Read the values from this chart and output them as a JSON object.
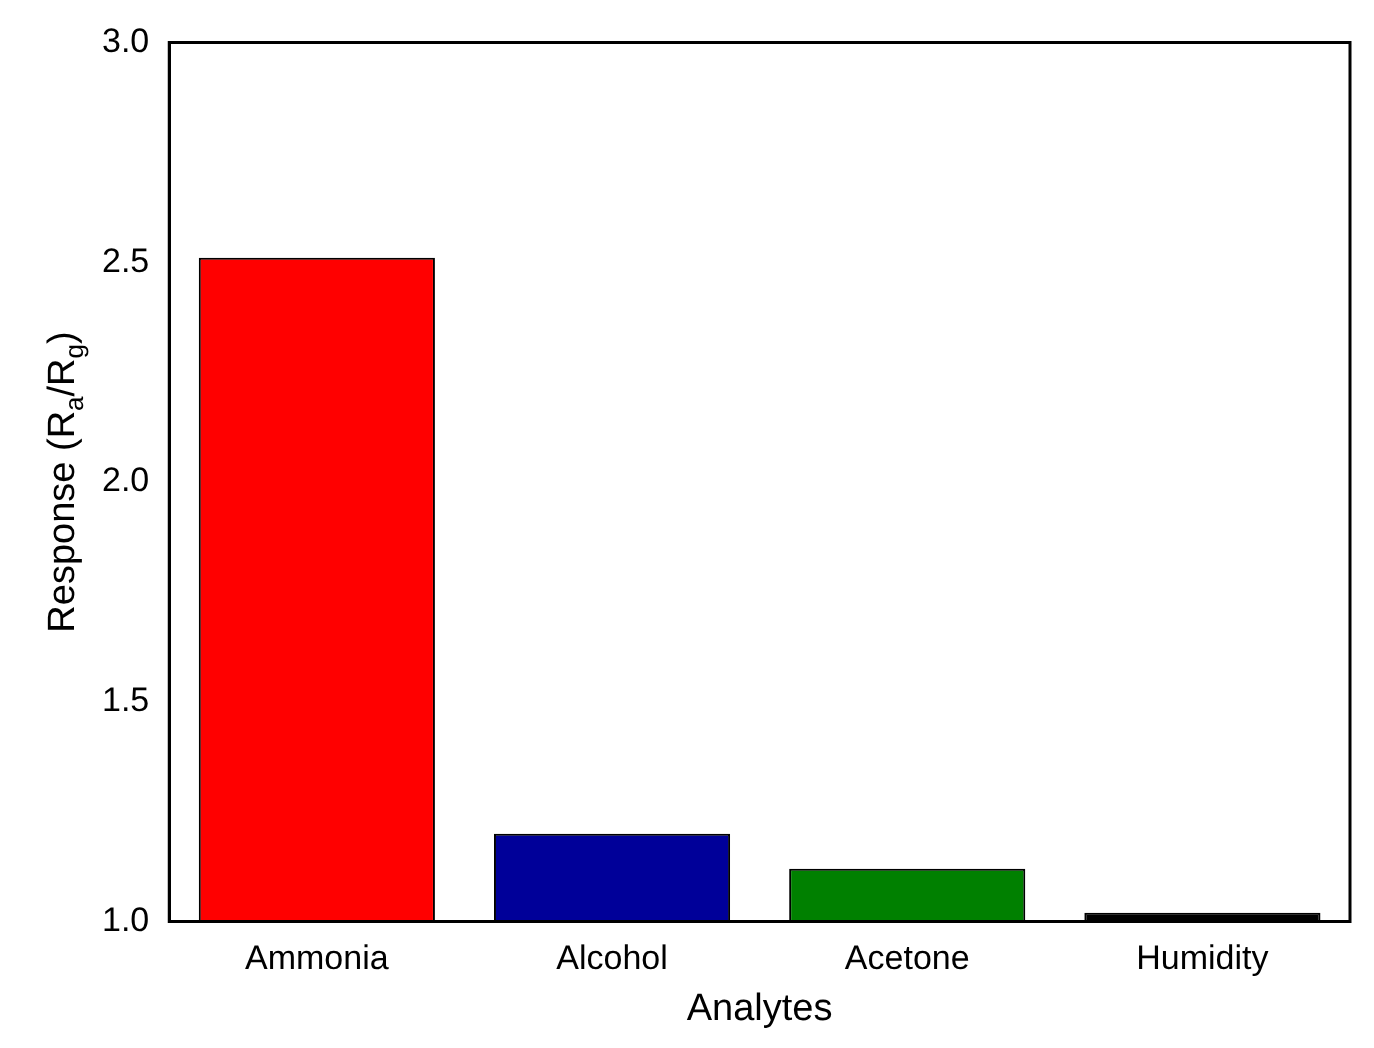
{
  "chart_data": {
    "type": "bar",
    "xlabel": "Analytes",
    "ylabel": "Response (R$_{a}$/R$_{g}$)",
    "categories": [
      "Ammonia",
      "Alcohol",
      "Acetone",
      "Humidity"
    ],
    "values": [
      2.51,
      1.2,
      1.12,
      1.02
    ],
    "colors": [
      "#ff0000",
      "#000099",
      "#008000",
      "#000000"
    ],
    "ylim": [
      1,
      3
    ],
    "yticks": [
      {
        "value": 1,
        "label": "1.0"
      },
      {
        "value": 1.5,
        "label": "1.5"
      },
      {
        "value": 2,
        "label": "2.0"
      },
      {
        "value": 2.5,
        "label": "2.5"
      },
      {
        "value": 3,
        "label": "3.0"
      }
    ],
    "grid": false,
    "legend": false
  }
}
